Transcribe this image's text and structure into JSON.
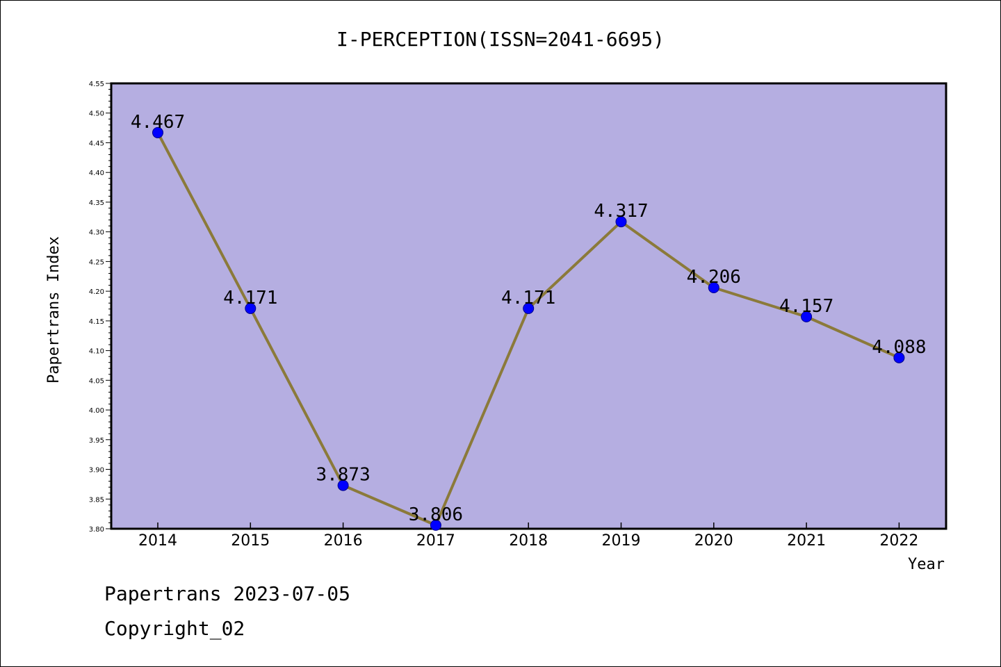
{
  "chart_data": {
    "type": "line",
    "title": "I-PERCEPTION(ISSN=2041-6695)",
    "xlabel": "Year",
    "ylabel": "Papertrans Index",
    "categories": [
      "2014",
      "2015",
      "2016",
      "2017",
      "2018",
      "2019",
      "2020",
      "2021",
      "2022"
    ],
    "values": [
      4.467,
      4.171,
      3.873,
      3.806,
      4.171,
      4.317,
      4.206,
      4.157,
      4.088
    ],
    "data_labels": [
      "4.467",
      "4.171",
      "3.873",
      "3.806",
      "4.171",
      "4.317",
      "4.206",
      "4.157",
      "4.088"
    ],
    "ylim": [
      3.8,
      4.55
    ],
    "yticks": [
      "3.80",
      "3.85",
      "3.90",
      "3.95",
      "4.00",
      "4.05",
      "4.10",
      "4.15",
      "4.20",
      "4.25",
      "4.30",
      "4.35",
      "4.40",
      "4.45",
      "4.50",
      "4.55"
    ],
    "grid": false,
    "colors": {
      "plot_background": "#b5aee1",
      "line": "#8b7a3a",
      "marker": "#0000ff"
    }
  },
  "footer": {
    "line1": "Papertrans 2023-07-05",
    "line2": "Copyright_02"
  }
}
